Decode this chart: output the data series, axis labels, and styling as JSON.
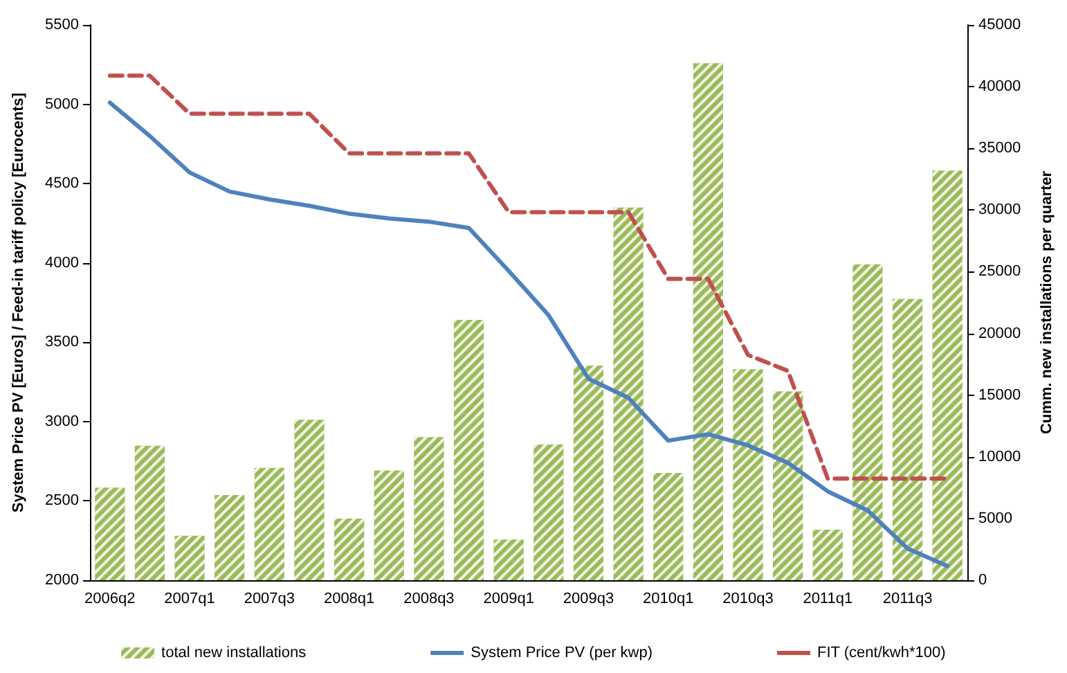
{
  "chart_data": {
    "type": "bar",
    "categories": [
      "2006q2",
      null,
      "2007q1",
      null,
      "2007q3",
      null,
      "2008q1",
      null,
      "2008q3",
      null,
      "2009q1",
      null,
      "2009q3",
      null,
      "2010q1",
      null,
      "2010q3",
      null,
      "2011q1",
      null,
      "2011q3",
      null
    ],
    "series": [
      {
        "name": "total new installations",
        "axis": "y2",
        "color": "#9bbb59",
        "values": [
          7500,
          10900,
          3600,
          6900,
          9100,
          13000,
          5000,
          8900,
          11600,
          21100,
          3300,
          11000,
          17400,
          30200,
          8700,
          41900,
          17100,
          15300,
          4100,
          25600,
          22800,
          33200
        ]
      },
      {
        "name": "System Price PV (per kwp)",
        "type": "line",
        "axis": "y",
        "color": "#4f81bd",
        "line_style": "solid",
        "values": [
          5010,
          4800,
          4570,
          4450,
          4400,
          4360,
          4310,
          4280,
          4260,
          4220,
          3950,
          3670,
          3270,
          3150,
          2880,
          2920,
          2850,
          2740,
          2560,
          2440,
          2200,
          2090
        ]
      },
      {
        "name": "FIT (cent/kwh*100)",
        "type": "line",
        "axis": "y",
        "color": "#c0504d",
        "line_style": "dashed",
        "values": [
          5180,
          5180,
          4940,
          4940,
          4940,
          4940,
          4690,
          4690,
          4690,
          4690,
          4320,
          4320,
          4320,
          4320,
          3900,
          3900,
          3420,
          3320,
          2640,
          2640,
          2640,
          2640
        ]
      }
    ],
    "ylabel": "System Price PV [Euros] / Feed-in tariff policy [Eurocents]",
    "y2label": "Cumm. new installations per quarter",
    "ylim": [
      2000,
      5500
    ],
    "yticks": [
      2000,
      2500,
      3000,
      3500,
      4000,
      4500,
      5000,
      5500
    ],
    "y2lim": [
      0,
      45000
    ],
    "y2ticks": [
      0,
      5000,
      10000,
      15000,
      20000,
      25000,
      30000,
      35000,
      40000,
      45000
    ],
    "grid": false,
    "legend": "bottom",
    "marker": "none"
  }
}
